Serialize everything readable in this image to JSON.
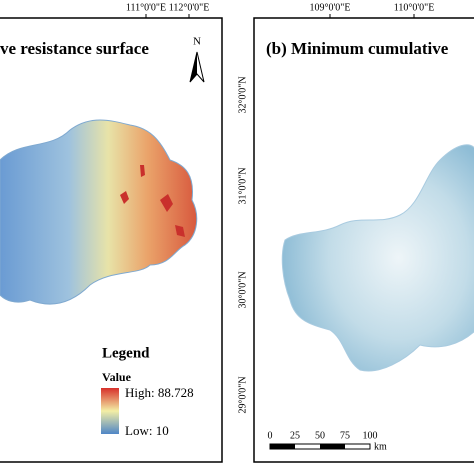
{
  "left_panel": {
    "title": "ve resistance surface",
    "lon_labels": [
      "111°0'0\"E",
      "112°0'0\"E"
    ],
    "north": "N",
    "legend": {
      "title": "Legend",
      "subtitle": "Value",
      "high": "High: 88.728",
      "low": "Low: 10"
    }
  },
  "right_panel": {
    "title": "(b) Minimum cumulative",
    "lon_labels": [
      "109°0'0\"E",
      "110°0'0\"E"
    ],
    "lat_labels": [
      "32°0'0\"N",
      "31°0'0\"N",
      "30°0'0\"N",
      "29°0'0\"N"
    ],
    "scale": {
      "ticks": [
        "0",
        "25",
        "50",
        "75",
        "100"
      ],
      "unit": "km"
    }
  }
}
